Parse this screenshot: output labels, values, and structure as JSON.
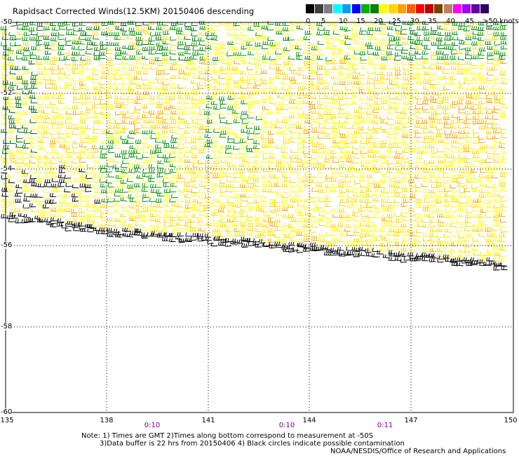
{
  "title": "Rapidsact Corrected Winds(12.5KM) 20150406 descending",
  "scale": {
    "labels": [
      "0",
      "5",
      "10",
      "15",
      "20",
      "25",
      "30",
      "35",
      "40",
      "45",
      ">50 knots"
    ],
    "colors": [
      "#000000",
      "#404040",
      "#7f7f7f",
      "#00ffff",
      "#00a0ff",
      "#0000ff",
      "#00b000",
      "#008000",
      "#ffff00",
      "#ffd700",
      "#ffa000",
      "#ff6000",
      "#ff0000",
      "#c00000",
      "#804000",
      "#c08060",
      "#ff00ff",
      "#a000ff",
      "#6000a0",
      "#300060"
    ]
  },
  "map": {
    "lat_labels": [
      "-50",
      "-52",
      "-54",
      "-56",
      "-58",
      "-60"
    ],
    "lon_labels": [
      "135",
      "138",
      "141",
      "144",
      "147",
      "150"
    ],
    "pass_times": [
      "0:10",
      "0:10",
      "0:11"
    ],
    "grid": "dotted"
  },
  "notes": {
    "line1": "Note: 1) Times are GMT 2)Times along bottom correspond to measurement at -50S",
    "line2": "3)Data buffer is 22 hrs from 20150406 4) Black circles indicate possible contamination",
    "line3": "NOAA/NESDIS/Office of Research and Applications"
  }
}
